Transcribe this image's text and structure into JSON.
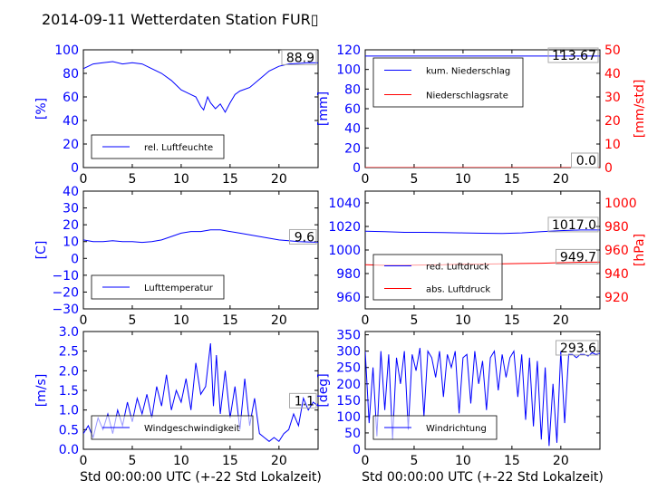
{
  "title": "2014-09-11 Wetterdaten Station FUR▯",
  "colors": {
    "primary": "#0000ff",
    "secondary": "#ff0000",
    "legend_border": "#000000",
    "label_box": "#aaaaaa"
  },
  "chart_data": [
    {
      "type": "line",
      "xlim": [
        0,
        24
      ],
      "ylim": [
        0,
        100
      ],
      "x_ticks": [
        0,
        5,
        10,
        15,
        20
      ],
      "y_ticks": [
        0,
        20,
        40,
        60,
        80,
        100
      ],
      "ylabel": "[%]",
      "xlabel": "",
      "legend_position": "lower-left",
      "series": [
        {
          "name": "rel. Luftfeuchte",
          "axis": "left",
          "color": "#0000ff",
          "x": [
            0,
            0.5,
            1,
            2,
            3,
            4,
            5,
            6,
            7,
            8,
            9,
            9.5,
            10,
            10.5,
            11,
            11.5,
            12,
            12.3,
            12.7,
            13,
            13.5,
            14,
            14.5,
            15,
            15.5,
            16,
            17,
            18,
            19,
            20,
            21,
            22,
            23,
            24
          ],
          "y": [
            84,
            86,
            88,
            89,
            90,
            88,
            89,
            88,
            84,
            80,
            74,
            70,
            66,
            64,
            62,
            60,
            52,
            49,
            60,
            55,
            50,
            54,
            47,
            55,
            62,
            65,
            68,
            75,
            82,
            86,
            88,
            88.5,
            89,
            88.9
          ]
        }
      ],
      "end_labels": [
        {
          "text": "88.9",
          "value": 88.9,
          "axis": "left"
        }
      ]
    },
    {
      "type": "line",
      "xlim": [
        0,
        24
      ],
      "ylim": [
        0,
        120
      ],
      "y2lim": [
        0,
        50
      ],
      "x_ticks": [
        0,
        5,
        10,
        15,
        20
      ],
      "y_ticks": [
        0,
        20,
        40,
        60,
        80,
        100,
        120
      ],
      "y2_ticks": [
        0,
        10,
        20,
        30,
        40,
        50
      ],
      "ylabel": "[mm]",
      "y2label": "[mm/std]",
      "xlabel": "",
      "legend_position": "upper-left",
      "series": [
        {
          "name": "kum. Niederschlag",
          "axis": "left",
          "color": "#0000ff",
          "x": [
            0,
            24
          ],
          "y": [
            113.67,
            113.67
          ]
        },
        {
          "name": "Niederschlagsrate",
          "axis": "right",
          "color": "#ff0000",
          "x": [
            0,
            24
          ],
          "y": [
            0.0,
            0.0
          ]
        }
      ],
      "end_labels": [
        {
          "text": "113.67",
          "value": 113.67,
          "axis": "left"
        },
        {
          "text": "0.0",
          "value": 0.0,
          "axis": "left"
        }
      ]
    },
    {
      "type": "line",
      "xlim": [
        0,
        24
      ],
      "ylim": [
        -30,
        40
      ],
      "x_ticks": [
        0,
        5,
        10,
        15,
        20
      ],
      "y_ticks": [
        -30,
        -20,
        -10,
        0,
        10,
        20,
        30,
        40
      ],
      "ylabel": "[C]",
      "xlabel": "",
      "legend_position": "lower-left",
      "series": [
        {
          "name": "Lufttemperatur",
          "axis": "left",
          "color": "#0000ff",
          "x": [
            0,
            1,
            2,
            3,
            4,
            5,
            6,
            7,
            8,
            9,
            10,
            11,
            12,
            13,
            14,
            15,
            16,
            17,
            18,
            19,
            20,
            21,
            22,
            23,
            24
          ],
          "y": [
            11,
            10,
            10,
            10.5,
            10,
            10,
            9.5,
            10,
            11,
            13,
            15,
            16,
            16,
            17,
            17,
            16,
            15,
            14,
            13,
            12,
            11,
            10.5,
            10,
            9.8,
            9.6
          ]
        }
      ],
      "end_labels": [
        {
          "text": "9.6",
          "value": 9.6,
          "axis": "left"
        }
      ]
    },
    {
      "type": "line",
      "xlim": [
        0,
        24
      ],
      "ylim": [
        950,
        1050
      ],
      "y2lim": [
        910,
        1010
      ],
      "x_ticks": [
        0,
        5,
        10,
        15,
        20
      ],
      "y_ticks": [
        960,
        980,
        1000,
        1020,
        1040
      ],
      "y2_ticks": [
        920,
        940,
        960,
        980,
        1000
      ],
      "ylabel": "",
      "y2label": "[hPa]",
      "xlabel": "",
      "legend_position": "lower-left",
      "series": [
        {
          "name": "red. Luftdruck",
          "axis": "left",
          "color": "#0000ff",
          "x": [
            0,
            2,
            4,
            6,
            8,
            10,
            12,
            14,
            16,
            18,
            20,
            22,
            24
          ],
          "y": [
            1016,
            1015.5,
            1015,
            1015,
            1014.8,
            1014.5,
            1014.2,
            1014,
            1014.5,
            1015.5,
            1016.5,
            1017,
            1017.0
          ]
        },
        {
          "name": "abs. Luftdruck",
          "axis": "right",
          "color": "#ff0000",
          "x": [
            0,
            2,
            4,
            6,
            8,
            10,
            12,
            14,
            16,
            18,
            20,
            22,
            24
          ],
          "y": [
            947.5,
            947,
            947,
            947.3,
            947.5,
            948,
            948,
            948.2,
            948.5,
            948.8,
            949.2,
            949.6,
            949.7
          ]
        }
      ],
      "end_labels": [
        {
          "text": "1017.0",
          "value": 1017.0,
          "axis": "left"
        },
        {
          "text": "949.7",
          "value": 949.7,
          "axis": "right"
        }
      ]
    },
    {
      "type": "line",
      "xlim": [
        0,
        24
      ],
      "ylim": [
        0,
        3.0
      ],
      "x_ticks": [
        0,
        5,
        10,
        15,
        20
      ],
      "y_ticks": [
        0.0,
        0.5,
        1.0,
        1.5,
        2.0,
        2.5,
        3.0
      ],
      "ylabel": "[m/s]",
      "xlabel": "Std 00:00:00 UTC (+-22 Std Lokalzeit)",
      "legend_position": "lower-left",
      "series": [
        {
          "name": "Windgeschwindigkeit",
          "axis": "left",
          "color": "#0000ff",
          "x": [
            0,
            0.5,
            1,
            1.5,
            2,
            2.5,
            3,
            3.5,
            4,
            4.5,
            5,
            5.5,
            6,
            6.5,
            7,
            7.5,
            8,
            8.5,
            9,
            9.5,
            10,
            10.5,
            11,
            11.5,
            12,
            12.5,
            13,
            13.3,
            13.6,
            14,
            14.5,
            15,
            15.5,
            16,
            16.5,
            17,
            17.5,
            18,
            18.5,
            19,
            19.5,
            20,
            20.5,
            21,
            21.5,
            22,
            22.5,
            23,
            23.5,
            24
          ],
          "y": [
            0.4,
            0.6,
            0.3,
            0.8,
            0.5,
            0.9,
            0.4,
            1.0,
            0.6,
            1.2,
            0.7,
            1.3,
            0.9,
            1.4,
            0.8,
            1.6,
            1.1,
            1.9,
            1.0,
            1.5,
            1.2,
            1.8,
            1.0,
            2.2,
            1.4,
            1.6,
            2.7,
            1.1,
            2.4,
            0.9,
            2.0,
            0.8,
            1.6,
            0.5,
            1.8,
            0.6,
            1.3,
            0.4,
            0.3,
            0.2,
            0.3,
            0.2,
            0.4,
            0.5,
            0.9,
            0.6,
            1.3,
            1.0,
            1.2,
            1.1
          ]
        }
      ],
      "end_labels": [
        {
          "text": "1.1",
          "value": 1.1,
          "axis": "left"
        }
      ]
    },
    {
      "type": "line",
      "xlim": [
        0,
        24
      ],
      "ylim": [
        0,
        360
      ],
      "x_ticks": [
        0,
        5,
        10,
        15,
        20
      ],
      "y_ticks": [
        0,
        50,
        100,
        150,
        200,
        250,
        300,
        350
      ],
      "ylabel": "[deg]",
      "xlabel": "Std 00:00:00 UTC (+-22 Std Lokalzeit)",
      "legend_position": "lower-left",
      "series": [
        {
          "name": "Windrichtung",
          "axis": "left",
          "color": "#0000ff",
          "x": [
            0,
            0.4,
            0.8,
            1.2,
            1.6,
            2,
            2.4,
            2.8,
            3.2,
            3.6,
            4,
            4.4,
            4.8,
            5.2,
            5.6,
            6,
            6.4,
            6.8,
            7.2,
            7.6,
            8,
            8.4,
            8.8,
            9.2,
            9.6,
            10,
            10.4,
            10.8,
            11.2,
            11.6,
            12,
            12.4,
            12.8,
            13.2,
            13.6,
            14,
            14.4,
            14.8,
            15.2,
            15.6,
            16,
            16.4,
            16.8,
            17.2,
            17.6,
            18,
            18.4,
            18.8,
            19.2,
            19.6,
            20,
            20.4,
            20.8,
            21.2,
            21.6,
            22,
            22.4,
            22.8,
            23.2,
            23.6,
            24
          ],
          "y": [
            300,
            80,
            250,
            40,
            300,
            120,
            290,
            30,
            280,
            200,
            300,
            60,
            290,
            240,
            310,
            100,
            300,
            280,
            220,
            300,
            160,
            290,
            250,
            300,
            110,
            280,
            290,
            140,
            300,
            200,
            270,
            120,
            280,
            300,
            180,
            290,
            220,
            280,
            300,
            160,
            290,
            90,
            280,
            70,
            270,
            30,
            250,
            10,
            200,
            20,
            300,
            80,
            290,
            290,
            280,
            290,
            290,
            285,
            295,
            290,
            293.6
          ]
        }
      ],
      "end_labels": [
        {
          "text": "293.6",
          "value": 293.6,
          "axis": "left"
        }
      ]
    }
  ]
}
